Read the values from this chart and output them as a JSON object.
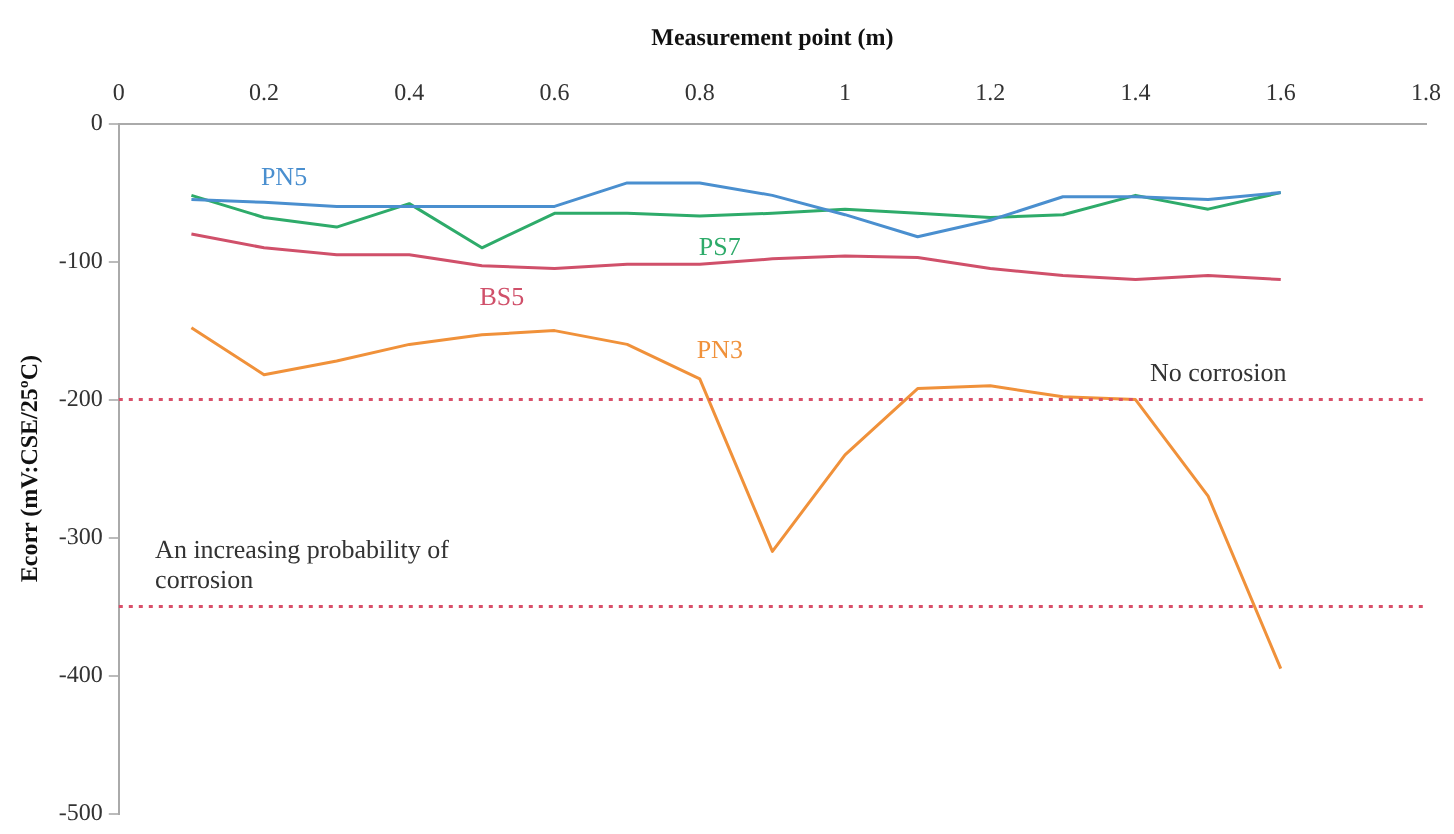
{
  "chart_data": {
    "type": "line",
    "xlabel": "Measurement point (m)",
    "ylabel": "Ecorr (mV:CSE/25ºC)",
    "x": [
      0.1,
      0.2,
      0.3,
      0.4,
      0.5,
      0.6,
      0.7,
      0.8,
      0.9,
      1.0,
      1.1,
      1.2,
      1.3,
      1.4,
      1.5,
      1.6
    ],
    "series": [
      {
        "name": "PN5",
        "color": "#4a8fcf",
        "values": [
          -55,
          -57,
          -60,
          -60,
          -60,
          -60,
          -43,
          -43,
          -52,
          -66,
          -82,
          -70,
          -53,
          -53,
          -55,
          -50
        ]
      },
      {
        "name": "PS7",
        "color": "#2eab6a",
        "values": [
          -52,
          -68,
          -75,
          -58,
          -90,
          -65,
          -65,
          -67,
          -65,
          -62,
          -65,
          -68,
          -66,
          -52,
          -62,
          -50
        ]
      },
      {
        "name": "BS5",
        "color": "#d0506a",
        "values": [
          -80,
          -90,
          -95,
          -95,
          -103,
          -105,
          -102,
          -102,
          -98,
          -96,
          -97,
          -105,
          -110,
          -113,
          -110,
          -113
        ]
      },
      {
        "name": "PN3",
        "color": "#f0913a",
        "values": [
          -148,
          -182,
          -172,
          -160,
          -153,
          -150,
          -160,
          -185,
          -310,
          -240,
          -192,
          -190,
          -198,
          -200,
          -270,
          -395
        ]
      }
    ],
    "xlim": [
      0,
      1.8
    ],
    "xticks": [
      0,
      0.2,
      0.4,
      0.6,
      0.8,
      1,
      1.2,
      1.4,
      1.6,
      1.8
    ],
    "ylim": [
      -500,
      0
    ],
    "yticks": [
      0,
      -100,
      -200,
      -300,
      -400,
      -500
    ],
    "ref_lines": [
      {
        "axis": "y",
        "value": -200,
        "color": "#d9506a",
        "line_style": "dotted"
      },
      {
        "axis": "y",
        "value": -350,
        "color": "#d9506a",
        "line_style": "dotted"
      }
    ],
    "annotations": [
      {
        "text": "No corrosion",
        "x": 1.42,
        "y": -200
      },
      {
        "text": "An increasing probability of corrosion",
        "x": 0.05,
        "y": -350
      }
    ],
    "grid": false,
    "legend": false,
    "marker": "none",
    "line_style": "solid"
  }
}
